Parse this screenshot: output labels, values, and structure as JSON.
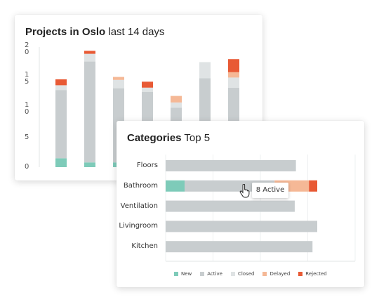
{
  "charts": {
    "projects": {
      "title_bold": "Projects in Oslo",
      "title_rest": " last 14 days"
    },
    "categories": {
      "title_bold": "Categories",
      "title_rest": " Top 5",
      "tooltip": "8 Active"
    }
  },
  "colors": {
    "New": "#7ecbb9",
    "Active": "#c8cdcf",
    "Closed": "#dfe3e4",
    "Delayed": "#f5b896",
    "Rejected": "#e85a35"
  },
  "chart_data": [
    {
      "type": "bar",
      "stacked": true,
      "orientation": "vertical",
      "title": "Projects in Oslo last 14 days",
      "y_tick_labels": [
        "2\n0",
        "1\n5",
        "1\n0",
        "5",
        "0"
      ],
      "ylim": [
        0,
        20
      ],
      "grid": true,
      "categories": [
        "",
        "",
        "",
        "",
        "",
        "",
        ""
      ],
      "series": [
        {
          "name": "New",
          "values": [
            1.5,
            0.8,
            0.8,
            0,
            0,
            0,
            0
          ]
        },
        {
          "name": "Active",
          "values": [
            11.5,
            17.0,
            12.5,
            12.7,
            10.0,
            15.0,
            13.4
          ]
        },
        {
          "name": "Closed",
          "values": [
            0.8,
            1.3,
            1.4,
            0.7,
            0.9,
            2.7,
            1.7
          ]
        },
        {
          "name": "Delayed",
          "values": [
            0,
            0,
            0.5,
            0,
            1.1,
            0,
            0.9
          ]
        },
        {
          "name": "Rejected",
          "values": [
            1.0,
            0.5,
            0,
            1.0,
            0,
            0,
            2.2
          ]
        }
      ]
    },
    {
      "type": "bar",
      "stacked": true,
      "orientation": "horizontal",
      "title": "Categories Top 5",
      "categories": [
        "Floors",
        "Bathroom",
        "Ventilation",
        "Livingroom",
        "Kitchen"
      ],
      "legend_position": "bottom",
      "grid": true,
      "series": [
        {
          "name": "New",
          "values": [
            0,
            8,
            0,
            0,
            0
          ]
        },
        {
          "name": "Active",
          "values": [
            55,
            38,
            54.5,
            64,
            62
          ]
        },
        {
          "name": "Closed",
          "values": [
            0,
            0,
            0,
            0,
            0
          ]
        },
        {
          "name": "Delayed",
          "values": [
            0,
            14.5,
            0,
            0,
            0
          ]
        },
        {
          "name": "Rejected",
          "values": [
            0,
            3.5,
            0,
            0,
            0
          ]
        }
      ]
    }
  ]
}
